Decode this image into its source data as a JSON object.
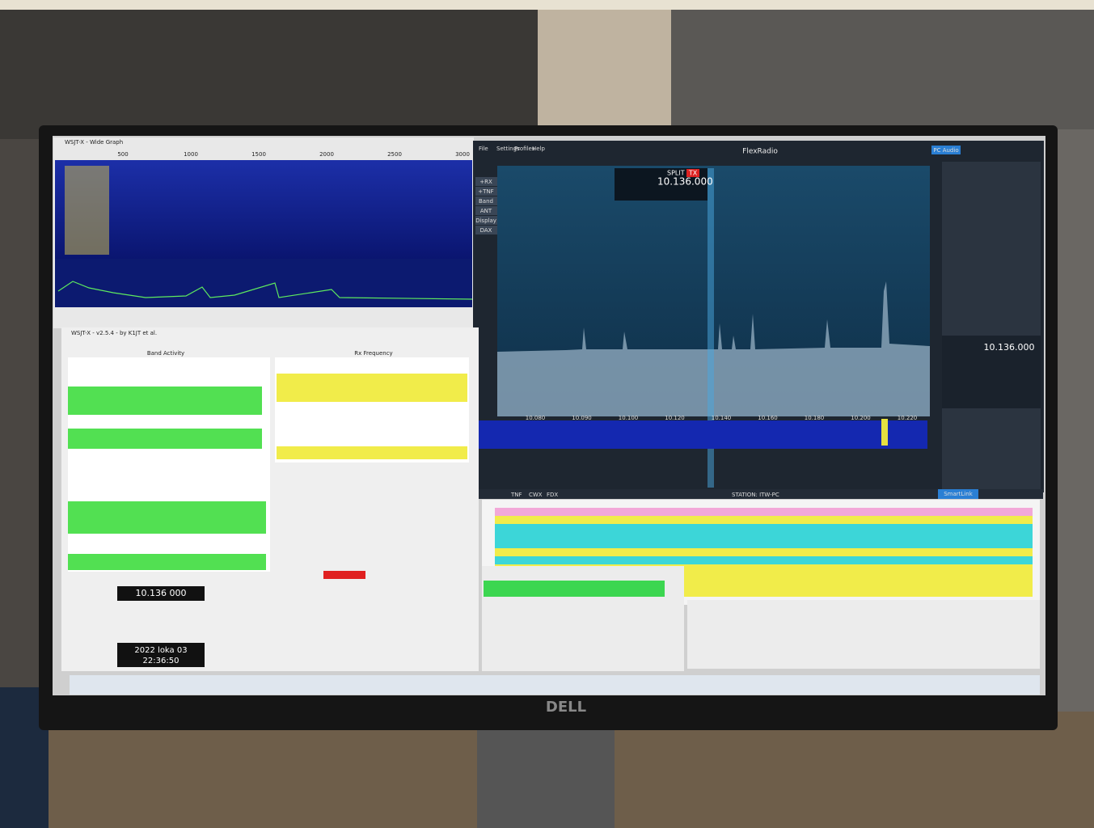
{
  "wide_graph": {
    "title": "WSJT-X - Wide Graph",
    "freq_labels": [
      "500",
      "1000",
      "1500",
      "2000",
      "2500",
      "3000"
    ]
  },
  "flexradio": {
    "brand": "FlexRadio",
    "menu": [
      "File",
      "Settings",
      "Profiles",
      "Help"
    ],
    "buttons": [
      "+RX",
      "+TNF",
      "Band",
      "ANT",
      "Display",
      "DAX"
    ],
    "frequency": "10.136.000",
    "split": "SPLIT",
    "tx": "TX",
    "band_labels": [
      "10.080",
      "10.090",
      "10.100",
      "10.120",
      "10.140",
      "10.160",
      "10.180",
      "10.200",
      "10.220"
    ],
    "slice_frequency": "10.136.000",
    "status": [
      "TNF",
      "CWX",
      "FDX"
    ],
    "station": "STATION: ITW-PC",
    "smartlink": "SmartLink",
    "audio": "PC Audio"
  },
  "wsjtx_main": {
    "title": "WSJT-X - v2.5.4 - by K1JT et al.",
    "band_activity": "Band Activity",
    "rx_frequency": "Rx Frequency",
    "dial_frequency": "10.136 000",
    "date": "2022 loka 03",
    "time": "22:36:50"
  },
  "monitor": {
    "brand": "DELL"
  }
}
